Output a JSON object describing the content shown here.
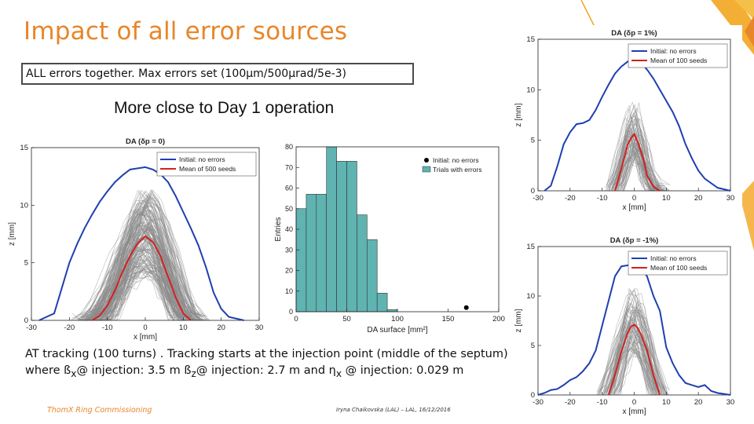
{
  "slide": {
    "title": "Impact of all error sources",
    "subtitle": "ALL errors together. Max errors set (100µm/500µrad/5e-3)",
    "headline": "More close to Day 1 operation",
    "caption": {
      "part1": "AT tracking (100 turns) . Tracking starts at the injection point (middle of the septum) where ß",
      "sub_x": "x",
      "part2": "@ injection: 3.5 m ß",
      "sub_z": "z",
      "part3": "@ injection: 2.7 m and η",
      "sub_x2": "x",
      "part4": " @ injection: 0.029 m"
    },
    "footer_left": "ThomX Ring Commissioning",
    "footer_mid": "Iryna Chaikovska (LAL) – LAL, 16/12/2016",
    "accent_color": "#e8862a",
    "deco_color": "#f2a51f"
  },
  "chart_data": [
    {
      "type": "line",
      "title": "DA (δp = 0)",
      "xlabel": "x [mm]",
      "ylabel": "z [mm]",
      "xlim": [
        -30,
        30
      ],
      "ylim": [
        0,
        15
      ],
      "xticks": [
        -30,
        -20,
        -10,
        0,
        10,
        20,
        30
      ],
      "yticks": [
        0,
        5,
        10,
        15
      ],
      "legend_position": "top-right",
      "series": [
        {
          "name": "Initial: no errors",
          "color": "#1f3fb0",
          "x": [
            -28,
            -24,
            -22,
            -20,
            -18,
            -16,
            -14,
            -12,
            -10,
            -8,
            -6,
            -4,
            -2,
            0,
            2,
            4,
            6,
            8,
            10,
            12,
            14,
            16,
            18,
            20,
            22,
            26
          ],
          "y": [
            0,
            0.6,
            2.8,
            5.0,
            6.6,
            8.0,
            9.2,
            10.3,
            11.2,
            12.0,
            12.6,
            13.1,
            13.2,
            13.3,
            13.1,
            12.7,
            12.0,
            10.8,
            9.4,
            8.0,
            6.5,
            4.6,
            2.4,
            1.0,
            0.3,
            0
          ]
        },
        {
          "name": "Mean of 500 seeds",
          "color": "#d42020",
          "x": [
            -14,
            -12,
            -10,
            -8,
            -6,
            -4,
            -2,
            0,
            2,
            4,
            6,
            8,
            10,
            12
          ],
          "y": [
            0,
            0.4,
            1.3,
            2.6,
            4.2,
            5.6,
            6.7,
            7.3,
            6.8,
            5.6,
            3.8,
            2.0,
            0.6,
            0
          ]
        }
      ]
    },
    {
      "type": "bar",
      "xlabel": "DA surface [mm²]",
      "ylabel": "Entries",
      "xlim": [
        0,
        200
      ],
      "ylim": [
        0,
        80
      ],
      "xticks": [
        0,
        50,
        100,
        150,
        200
      ],
      "yticks": [
        0,
        10,
        20,
        30,
        40,
        50,
        60,
        70,
        80
      ],
      "legend_position": "top-right",
      "series_names": [
        "Initial: no errors",
        "Trials with errors"
      ],
      "bin_edges": [
        0,
        10,
        20,
        30,
        40,
        50,
        60,
        70,
        80,
        90,
        100
      ],
      "values": [
        50,
        57,
        57,
        80,
        73,
        73,
        47,
        35,
        9,
        1
      ],
      "initial_point": {
        "x": 168,
        "y": 2
      },
      "bar_color": "#5fb3b1",
      "point_color": "#000000"
    },
    {
      "type": "line",
      "title": "DA (δp = 1%)",
      "xlabel": "x [mm]",
      "ylabel": "z [mm]",
      "xlim": [
        -30,
        30
      ],
      "ylim": [
        0,
        15
      ],
      "xticks": [
        -30,
        -20,
        -10,
        0,
        10,
        20,
        30
      ],
      "yticks": [
        0,
        5,
        10,
        15
      ],
      "legend_position": "top-right",
      "series": [
        {
          "name": "Initial: no errors",
          "color": "#1f3fb0",
          "x": [
            -28,
            -26,
            -24,
            -22,
            -20,
            -18,
            -16,
            -14,
            -12,
            -10,
            -8,
            -6,
            -4,
            -2,
            0,
            2,
            4,
            6,
            8,
            10,
            12,
            14,
            16,
            18,
            20,
            22,
            26,
            30
          ],
          "y": [
            0,
            0.5,
            2.4,
            4.6,
            5.8,
            6.6,
            6.7,
            7.0,
            8.0,
            9.3,
            10.5,
            11.6,
            12.3,
            12.8,
            13.0,
            12.7,
            12.0,
            11.1,
            10.0,
            8.9,
            7.8,
            6.4,
            4.6,
            3.2,
            2.0,
            1.2,
            0.3,
            0
          ]
        },
        {
          "name": "Mean of 100 seeds",
          "color": "#d42020",
          "x": [
            -6,
            -4,
            -2,
            -1,
            0,
            1,
            2,
            3,
            4,
            6,
            8
          ],
          "y": [
            0,
            2.2,
            4.6,
            5.2,
            5.6,
            4.9,
            4.0,
            3.0,
            1.5,
            0.4,
            0
          ]
        }
      ]
    },
    {
      "type": "line",
      "title": "DA (δp = -1%)",
      "xlabel": "x [mm]",
      "ylabel": "z [mm]",
      "xlim": [
        -30,
        30
      ],
      "ylim": [
        0,
        15
      ],
      "xticks": [
        -30,
        -20,
        -10,
        0,
        10,
        20,
        30
      ],
      "yticks": [
        0,
        5,
        10,
        15
      ],
      "legend_position": "top-right",
      "series": [
        {
          "name": "Initial: no errors",
          "color": "#1f3fb0",
          "x": [
            -30,
            -28,
            -26,
            -24,
            -22,
            -20,
            -18,
            -16,
            -14,
            -12,
            -10,
            -8,
            -6,
            -4,
            -2,
            0,
            2,
            4,
            6,
            8,
            10,
            12,
            14,
            16,
            18,
            20,
            22,
            24,
            26,
            28,
            30
          ],
          "y": [
            0,
            0.2,
            0.5,
            0.6,
            1.0,
            1.5,
            1.8,
            2.4,
            3.2,
            4.5,
            7.0,
            9.5,
            12.0,
            13.0,
            13.1,
            13.0,
            12.8,
            12.0,
            10.0,
            8.5,
            4.8,
            3.2,
            2.0,
            1.2,
            1.0,
            0.8,
            1.0,
            0.4,
            0.2,
            0.1,
            0
          ]
        },
        {
          "name": "Mean of 100 seeds",
          "color": "#d42020",
          "x": [
            -8,
            -6,
            -4,
            -2,
            -1,
            0,
            1,
            2,
            4,
            6,
            8
          ],
          "y": [
            0,
            2.0,
            4.4,
            6.3,
            6.9,
            7.1,
            6.8,
            6.2,
            4.5,
            2.0,
            0
          ]
        }
      ]
    }
  ]
}
